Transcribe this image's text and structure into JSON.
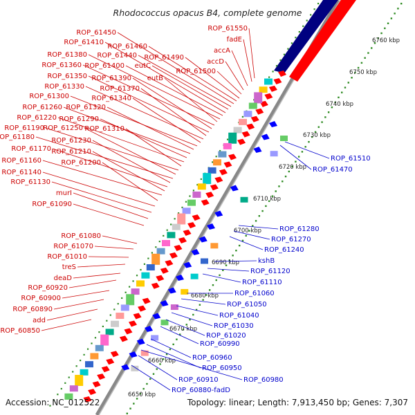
{
  "title": "Rhodococcus opacus B4, complete genome",
  "footer": {
    "accession": "Accession: NC_012522",
    "summary": "Topology: linear; Length: 7,913,450 bp; Genes: 7,307"
  },
  "colors": {
    "forward": "#ff0000",
    "reverse": "#0000ff",
    "track_forward": "#ff0000",
    "track_reverse": "#000080",
    "ruler_dots": "#2e8b22",
    "label_forward": "#cc0000",
    "label_reverse": "#0000cc"
  },
  "ruler": {
    "unit": "kbp",
    "ticks": [
      {
        "label": "6650 kbp"
      },
      {
        "label": "6660 kbp"
      },
      {
        "label": "6670 kbp"
      },
      {
        "label": "6680 kbp"
      },
      {
        "label": "6690 kbp"
      },
      {
        "label": "6700 kbp"
      },
      {
        "label": "6710 kbp"
      },
      {
        "label": "6720 kbp"
      },
      {
        "label": "6730 kbp"
      },
      {
        "label": "6740 kbp"
      },
      {
        "label": "6750 kbp"
      },
      {
        "label": "6760 kbp"
      }
    ]
  },
  "forward_labels": [
    "ROP_61550",
    "fadE",
    "accA",
    "accD",
    "ROP_61500",
    "ROP_61490",
    "ROP_61460",
    "ROP_61450",
    "ROP_61440",
    "eutC",
    "ROP_61410",
    "ROP_61400",
    "ROP_61380",
    "eutB",
    "ROP_61360",
    "ROP_61390",
    "ROP_61350",
    "ROP_61370",
    "ROP_61330",
    "ROP_61340",
    "ROP_61300",
    "ROP_61320",
    "ROP_61260",
    "ROP_61290",
    "ROP_61220",
    "ROP_61310",
    "ROP_61190",
    "ROP_61250",
    "ROP_61180",
    "ROP_61230",
    "ROP_61170",
    "ROP_61210",
    "ROP_61160",
    "ROP_61200",
    "ROP_61140",
    "ROP_61130",
    "murI",
    "ROP_61090",
    "ROP_61080",
    "ROP_61070",
    "ROP_61010",
    "treS",
    "deaD",
    "ROP_60920",
    "ROP_60900",
    "ROP_60890",
    "add",
    "ROP_60850"
  ],
  "reverse_labels": [
    "ROP_61510",
    "ROP_61470",
    "ROP_61280",
    "ROP_61270",
    "ROP_61240",
    "kshB",
    "ROP_61120",
    "ROP_61110",
    "ROP_61060",
    "ROP_61050",
    "ROP_61040",
    "ROP_61030",
    "ROP_61020",
    "ROP_60990",
    "ROP_60960",
    "ROP_60950",
    "ROP_60980",
    "ROP_60910",
    "ROP_60880-fadD"
  ],
  "domain_colors": [
    "#00cccc",
    "#ffcc00",
    "#cc66cc",
    "#66cc66",
    "#9999ff",
    "#ff9999",
    "#cccccc",
    "#00aa88",
    "#ff66cc",
    "#6699cc",
    "#ff9933",
    "#3366cc"
  ]
}
